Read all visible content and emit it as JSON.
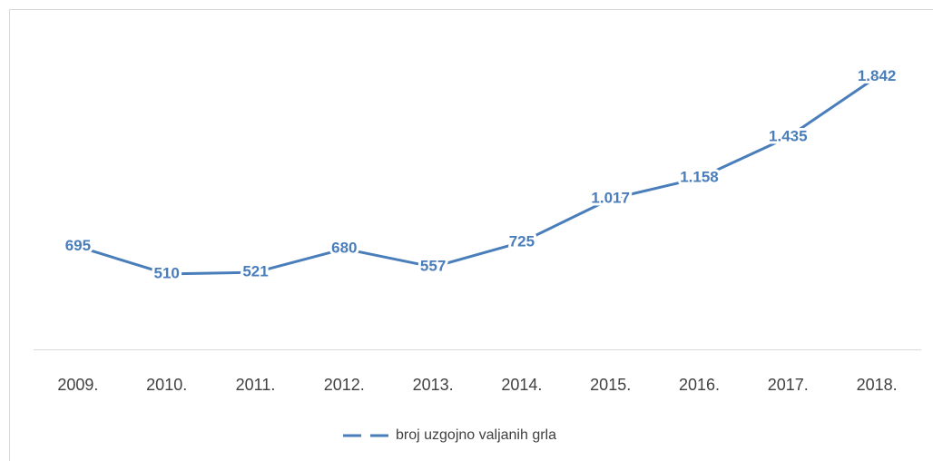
{
  "chart_data": {
    "type": "line",
    "categories": [
      "2009.",
      "2010.",
      "2011.",
      "2012.",
      "2013.",
      "2014.",
      "2015.",
      "2016.",
      "2017.",
      "2018."
    ],
    "series": [
      {
        "name": "broj uzgojno valjanih grla",
        "color": "#4a7ebb",
        "values": [
          695,
          510,
          521,
          680,
          557,
          725,
          1017,
          1158,
          1435,
          1842
        ],
        "value_labels": [
          "695",
          "510",
          "521",
          "680",
          "557",
          "725",
          "1.017",
          "1.158",
          "1.435",
          "1.842"
        ]
      }
    ],
    "ylim": [
      0,
      2000
    ]
  }
}
